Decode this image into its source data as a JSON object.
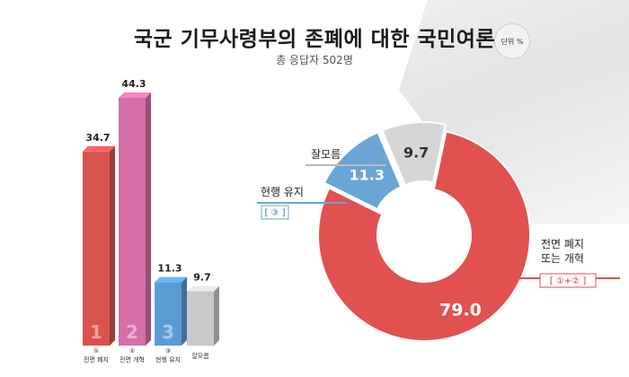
{
  "header": {
    "title": "국군 기무사령부의 존폐에 대한 국민여론",
    "subtitle": "총 응답자 502명",
    "unit_badge": "단위 %"
  },
  "chart_data": [
    {
      "type": "bar",
      "categories": [
        "①\n전면 폐지",
        "②\n전면 개혁",
        "③\n현행 유지",
        "잘모름"
      ],
      "numerals": [
        "1",
        "2",
        "3",
        ""
      ],
      "values": [
        34.7,
        44.3,
        11.3,
        9.7
      ],
      "colors": [
        "#d9534f",
        "#d46fa8",
        "#5b9bd5",
        "#c8c8c8"
      ],
      "title": "",
      "xlabel": "",
      "ylabel": "",
      "ylim": [
        0,
        50
      ],
      "grid": false
    },
    {
      "type": "pie",
      "donut": true,
      "labels": [
        "전면 폐지\n또는 개혁",
        "현행 유지",
        "잘모름"
      ],
      "tags": [
        "[ ①+② ]",
        "[ ③ ]",
        ""
      ],
      "values": [
        79.0,
        11.3,
        9.7
      ],
      "colors": [
        "#e0514f",
        "#6aa5d6",
        "#d6d6d6"
      ],
      "title": ""
    }
  ]
}
